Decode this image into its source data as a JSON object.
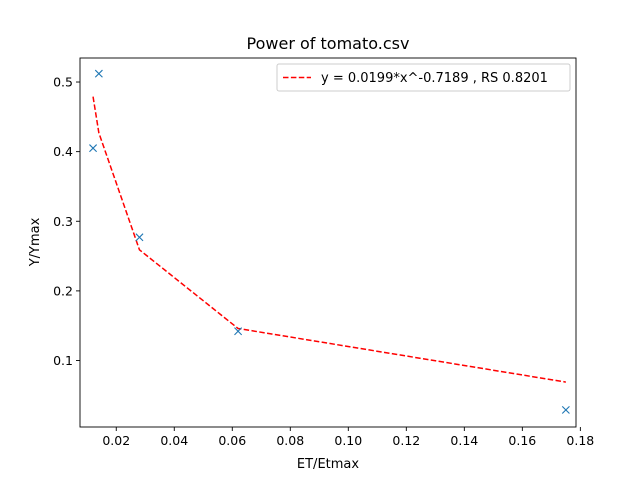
{
  "chart_data": {
    "type": "scatter",
    "title": "Power of tomato.csv",
    "xlabel": "ET/Etmax",
    "ylabel": "Y/Ymax",
    "xlim": [
      0.0075,
      0.1785
    ],
    "ylim": [
      0.0045,
      0.5345
    ],
    "xticks": [
      0.02,
      0.04,
      0.06,
      0.08,
      0.1,
      0.12,
      0.14,
      0.16,
      0.18
    ],
    "xtick_labels": [
      "0.02",
      "0.04",
      "0.06",
      "0.08",
      "0.10",
      "0.12",
      "0.14",
      "0.16",
      "0.18"
    ],
    "yticks": [
      0.1,
      0.2,
      0.3,
      0.4,
      0.5
    ],
    "ytick_labels": [
      "0.1",
      "0.2",
      "0.3",
      "0.4",
      "0.5"
    ],
    "grid": false,
    "legend_position": "top-right",
    "series": [
      {
        "type": "scatter",
        "marker": "x",
        "color": "#1f77b4",
        "points": [
          {
            "x": 0.012,
            "y": 0.405
          },
          {
            "x": 0.014,
            "y": 0.512
          },
          {
            "x": 0.028,
            "y": 0.277
          },
          {
            "x": 0.062,
            "y": 0.142
          },
          {
            "x": 0.175,
            "y": 0.029
          }
        ]
      },
      {
        "type": "line",
        "name": "y = 0.0199*x^-0.7189 , RS 0.8201",
        "style": "dashed",
        "color": "#ff0000",
        "points": [
          {
            "x": 0.012,
            "y": 0.479
          },
          {
            "x": 0.014,
            "y": 0.427
          },
          {
            "x": 0.028,
            "y": 0.259
          },
          {
            "x": 0.062,
            "y": 0.146
          },
          {
            "x": 0.175,
            "y": 0.069
          }
        ]
      }
    ]
  }
}
